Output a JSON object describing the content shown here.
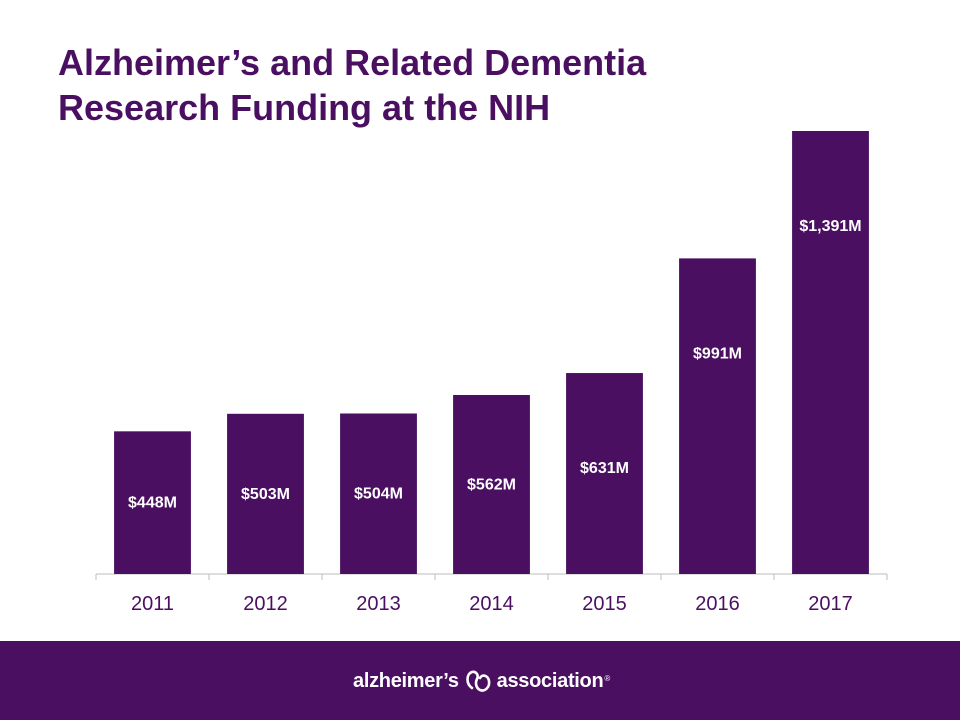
{
  "colors": {
    "accent": "#4b0f62",
    "bar": "#4b0f62",
    "axis": "#bdbdbd",
    "label_text": "#ffffff",
    "tick_text": "#4b0f62"
  },
  "chart_data": {
    "type": "bar",
    "title_lines": [
      "Alzheimer’s and Related Dementia",
      "Research Funding at the NIH"
    ],
    "categories": [
      "2011",
      "2012",
      "2013",
      "2014",
      "2015",
      "2016",
      "2017"
    ],
    "values": [
      448,
      503,
      504,
      562,
      631,
      991,
      1391
    ],
    "data_labels": [
      "$448M",
      "$503M",
      "$504M",
      "$562M",
      "$631M",
      "$991M",
      "$1,391M"
    ],
    "ylim": [
      0,
      1391
    ],
    "grid": false,
    "legend": "none"
  },
  "footer": {
    "logo": {
      "word_left": "alzheimer’s",
      "word_right": "association",
      "mark": "®",
      "icon": "alzheimers-association-symbol-icon"
    }
  }
}
